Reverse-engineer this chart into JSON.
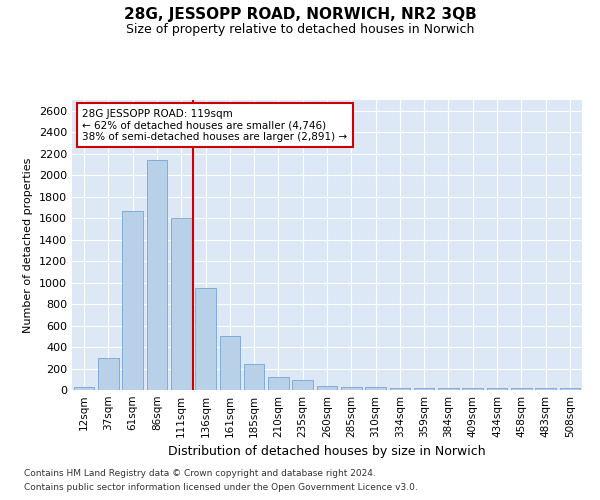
{
  "title": "28G, JESSOPP ROAD, NORWICH, NR2 3QB",
  "subtitle": "Size of property relative to detached houses in Norwich",
  "xlabel": "Distribution of detached houses by size in Norwich",
  "ylabel": "Number of detached properties",
  "bar_color": "#b8d0e8",
  "bar_edge_color": "#6699cc",
  "background_color": "#dce8f5",
  "grid_color": "#ffffff",
  "fig_background": "#ffffff",
  "categories": [
    "12sqm",
    "37sqm",
    "61sqm",
    "86sqm",
    "111sqm",
    "136sqm",
    "161sqm",
    "185sqm",
    "210sqm",
    "235sqm",
    "260sqm",
    "285sqm",
    "310sqm",
    "334sqm",
    "359sqm",
    "384sqm",
    "409sqm",
    "434sqm",
    "458sqm",
    "483sqm",
    "508sqm"
  ],
  "values": [
    25,
    300,
    1670,
    2140,
    1600,
    950,
    500,
    245,
    120,
    95,
    40,
    30,
    25,
    20,
    18,
    18,
    18,
    18,
    18,
    18,
    20
  ],
  "ylim": [
    0,
    2700
  ],
  "yticks": [
    0,
    200,
    400,
    600,
    800,
    1000,
    1200,
    1400,
    1600,
    1800,
    2000,
    2200,
    2400,
    2600
  ],
  "red_line_x": 4.5,
  "annotation_text": "28G JESSOPP ROAD: 119sqm\n← 62% of detached houses are smaller (4,746)\n38% of semi-detached houses are larger (2,891) →",
  "annotation_box_color": "#ffffff",
  "annotation_border_color": "#cc0000",
  "footer_line1": "Contains HM Land Registry data © Crown copyright and database right 2024.",
  "footer_line2": "Contains public sector information licensed under the Open Government Licence v3.0."
}
